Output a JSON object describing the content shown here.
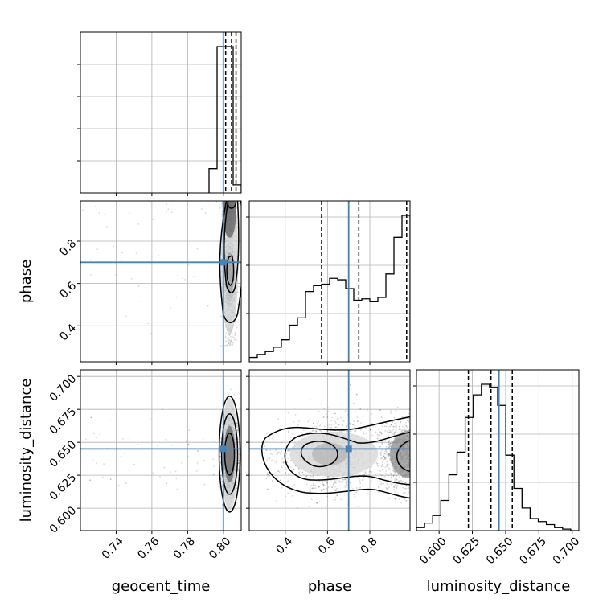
{
  "chart_data": {
    "type": "corner",
    "parameters": [
      "geocent_time",
      "phase",
      "luminosity_distance"
    ],
    "axis_labels": {
      "geocent_time": "geocent_time",
      "phase": "phase",
      "luminosity_distance": "luminosity_distance"
    },
    "ranges": {
      "geocent_time": [
        0.72,
        0.81
      ],
      "phase": [
        0.23,
        0.99
      ],
      "luminosity_distance": [
        0.583,
        0.705
      ]
    },
    "ticks": {
      "geocent_time": [
        "0.74",
        "0.76",
        "0.78",
        "0.80"
      ],
      "phase": [
        "0.4",
        "0.6",
        "0.8"
      ],
      "luminosity_distance": [
        "0.600",
        "0.625",
        "0.650",
        "0.675",
        "0.700"
      ]
    },
    "truth": {
      "geocent_time": 0.8,
      "phase": 0.7,
      "luminosity_distance": 0.645
    },
    "truth_color": "#4682b4",
    "quantiles": {
      "geocent_time": [
        0.8013,
        0.8046,
        0.8071
      ],
      "phase": [
        0.572,
        0.748,
        0.974
      ],
      "luminosity_distance": [
        0.622,
        0.639,
        0.655
      ]
    },
    "histograms": {
      "geocent_time": {
        "edges": [
          0.792,
          0.7965,
          0.801,
          0.8055,
          0.81
        ],
        "counts": [
          0.15,
          0.9,
          0.9,
          0.05
        ]
      },
      "phase": {
        "edges": [
          0.23,
          0.268,
          0.306,
          0.344,
          0.382,
          0.42,
          0.458,
          0.496,
          0.534,
          0.572,
          0.61,
          0.648,
          0.686,
          0.724,
          0.762,
          0.8,
          0.838,
          0.876,
          0.914,
          0.952,
          0.99
        ],
        "counts": [
          0.03,
          0.05,
          0.07,
          0.1,
          0.15,
          0.25,
          0.3,
          0.48,
          0.52,
          0.53,
          0.57,
          0.56,
          0.5,
          0.42,
          0.43,
          0.41,
          0.44,
          0.6,
          0.85,
          1.0
        ]
      },
      "luminosity_distance": {
        "edges": [
          0.583,
          0.5891,
          0.5952,
          0.6013,
          0.6074,
          0.6135,
          0.6196,
          0.6257,
          0.6318,
          0.6379,
          0.644,
          0.6501,
          0.6562,
          0.6623,
          0.6684,
          0.6745,
          0.6806,
          0.6867,
          0.6928,
          0.6989,
          0.705
        ],
        "counts": [
          0.02,
          0.05,
          0.1,
          0.2,
          0.37,
          0.52,
          0.75,
          0.9,
          0.97,
          0.95,
          0.83,
          0.5,
          0.28,
          0.15,
          0.08,
          0.06,
          0.04,
          0.02,
          0.01,
          0.0
        ]
      }
    },
    "grid": true
  }
}
